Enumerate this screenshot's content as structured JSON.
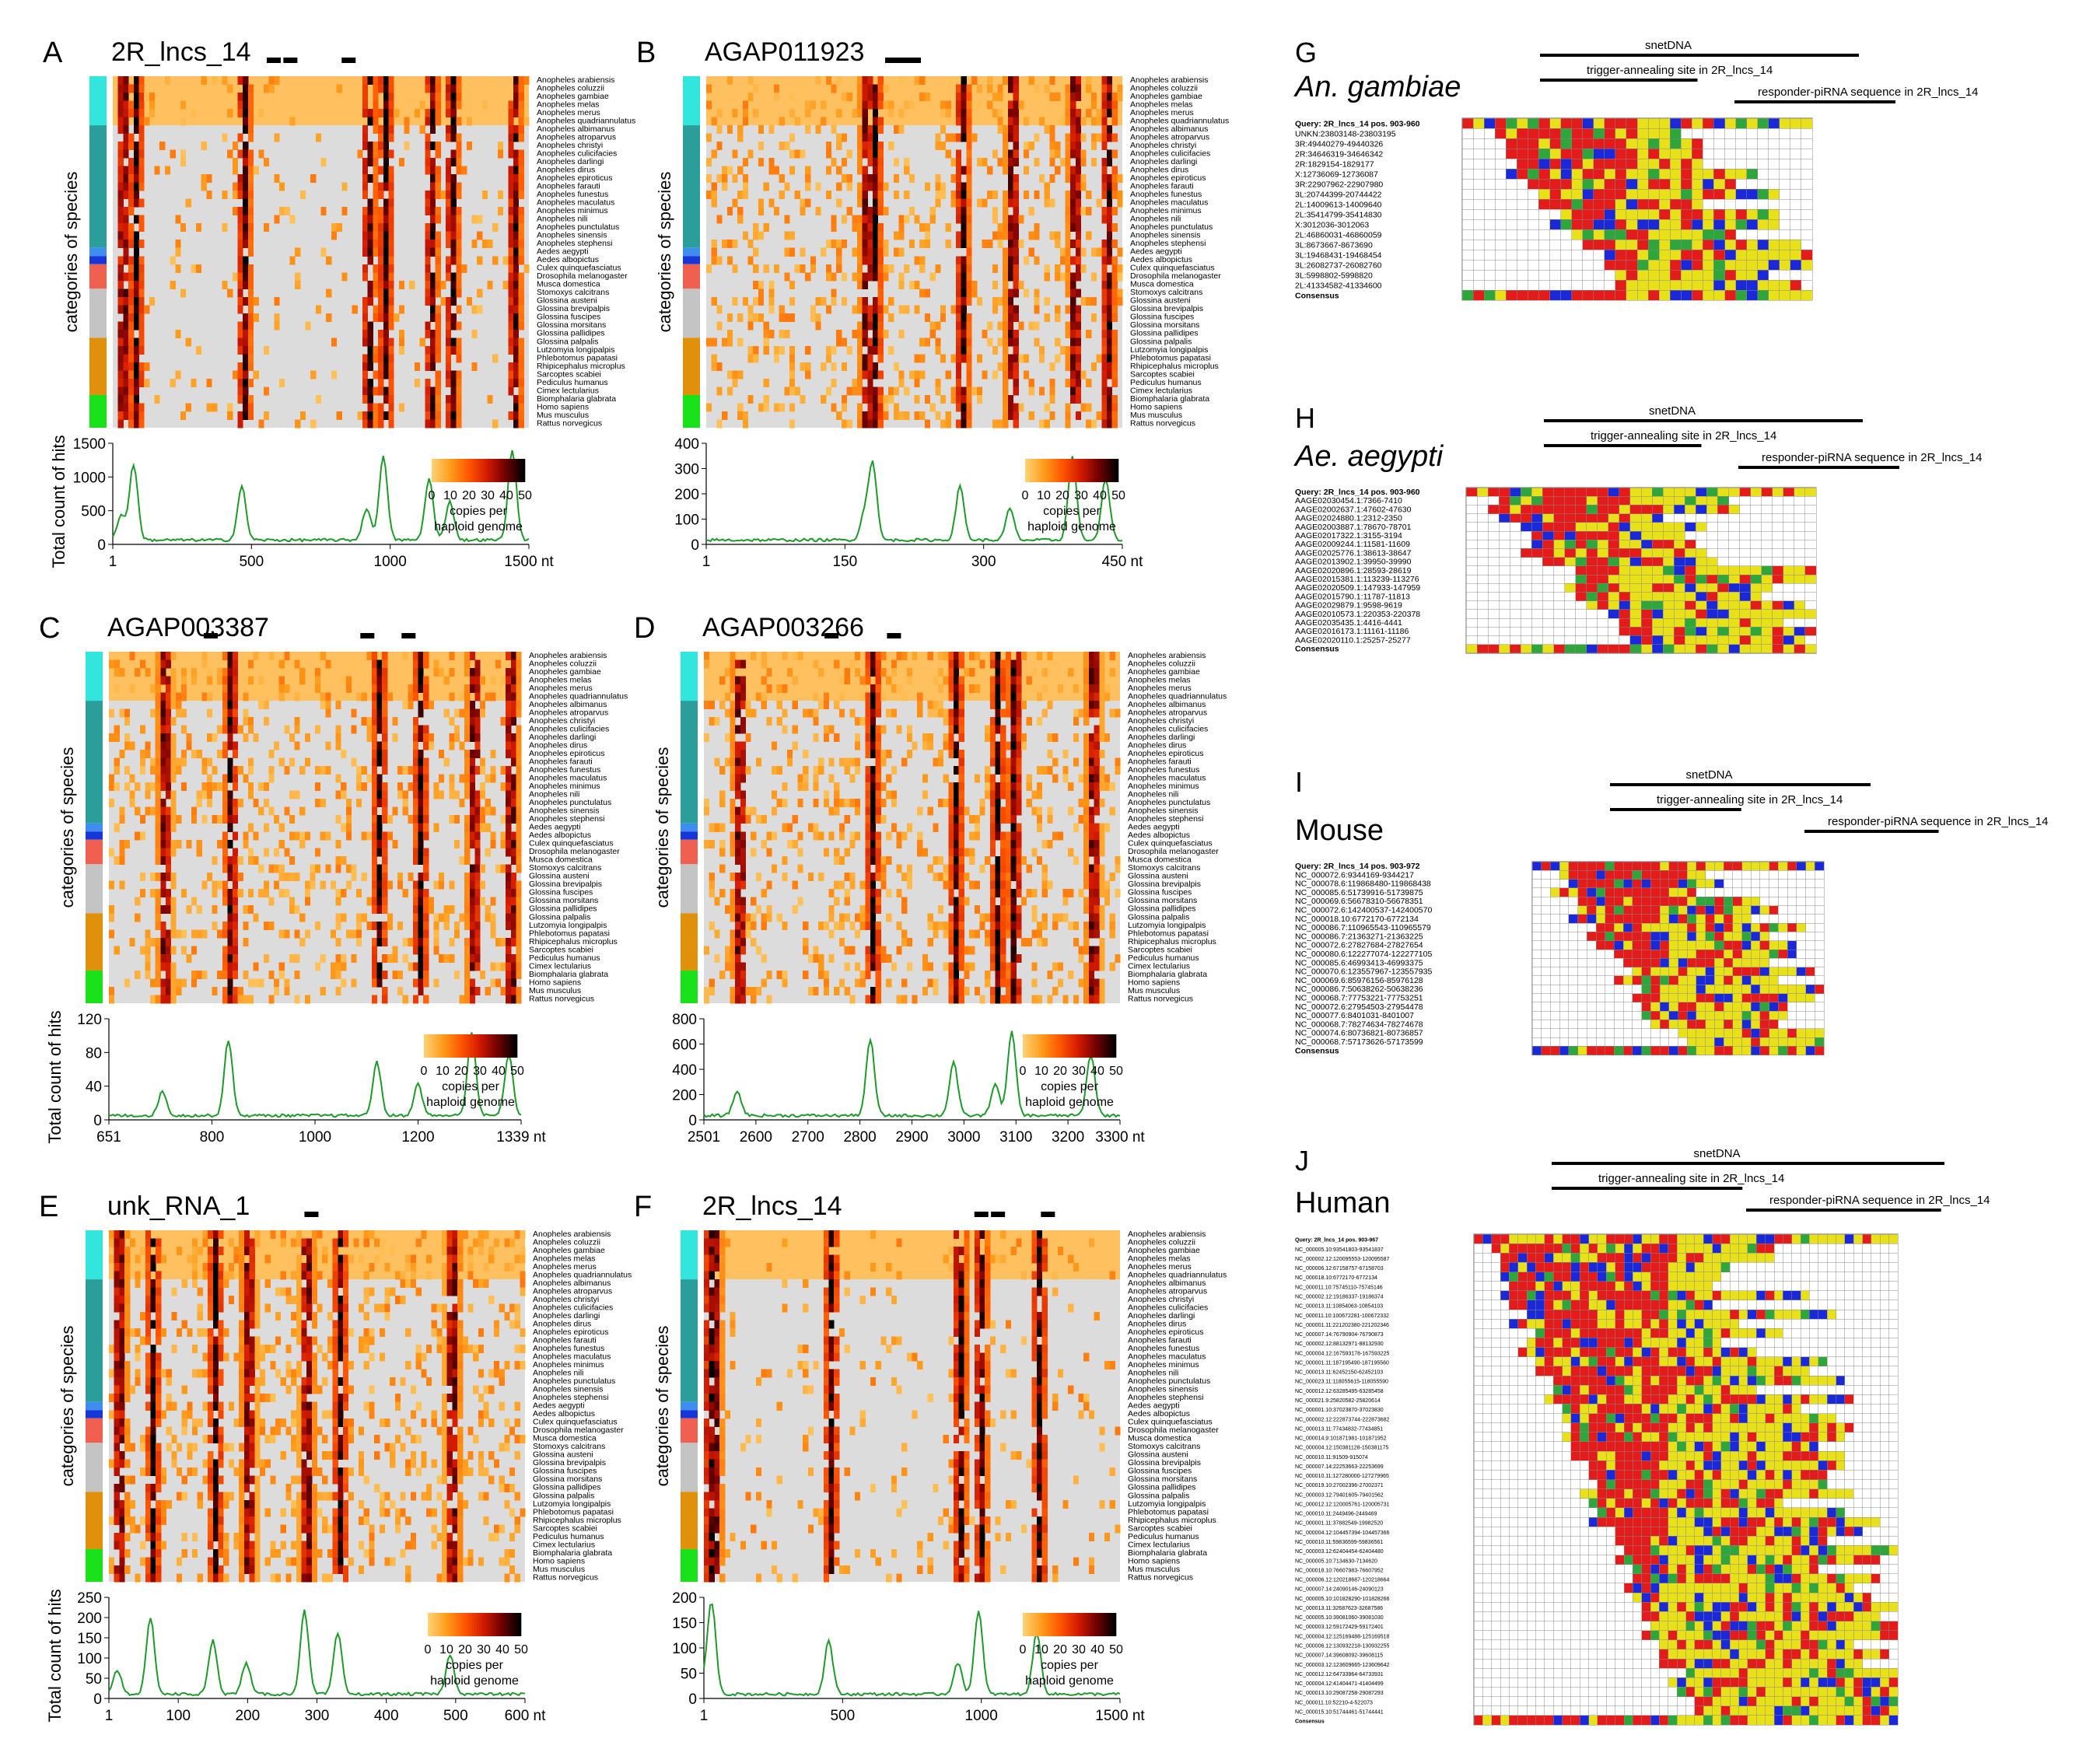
{
  "species": [
    "Anopheles arabiensis",
    "Anopheles coluzzii",
    "Anopheles gambiae",
    "Anopheles melas",
    "Anopheles merus",
    "Anopheles quadriannulatus",
    "Anopheles albimanus",
    "Anopheles atroparvus",
    "Anopheles christyi",
    "Anopheles culicifacies",
    "Anopheles darlingi",
    "Anopheles dirus",
    "Anopheles epiroticus",
    "Anopheles farauti",
    "Anopheles funestus",
    "Anopheles maculatus",
    "Anopheles minimus",
    "Anopheles nili",
    "Anopheles punctulatus",
    "Anopheles sinensis",
    "Anopheles stephensi",
    "Aedes aegypti",
    "Aedes albopictus",
    "Culex quinquefasciatus",
    "Drosophila melanogaster",
    "Musca domestica",
    "Stomoxys calcitrans",
    "Glossina austeni",
    "Glossina brevipalpis",
    "Glossina fuscipes",
    "Glossina morsitans",
    "Glossina pallidipes",
    "Glossina palpalis",
    "Lutzomyia longipalpis",
    "Phlebotomus papatasi",
    "Rhipicephalus microplus",
    "Sarcoptes scabiei",
    "Pediculus humanus",
    "Cimex lectularius",
    "Biomphalaria glabrata",
    "Homo sapiens",
    "Mus musculus",
    "Rattus norvegicus"
  ],
  "category_label": "categories of species",
  "hits_label": "Total count of hits",
  "colorbar": {
    "ticks": [
      "0",
      "10",
      "20",
      "30",
      "40",
      "50"
    ],
    "caption1": "copies per",
    "caption2": "haploid genome",
    "colors": [
      "#ffd070",
      "#ff9a1a",
      "#ff5500",
      "#d21a00",
      "#6e0000",
      "#000000"
    ]
  },
  "category_colors": [
    "#33e6dd",
    "#2b9d9a",
    "#3f8df0",
    "#1636d8",
    "#f06050",
    "#c4c4c4",
    "#e0900a",
    "#19e21a"
  ],
  "panels": [
    {
      "letter": "A",
      "title": "2R_lncs_14",
      "x_ticks": [
        "1",
        "500",
        "1000",
        "1500 nt"
      ],
      "y_ticks": [
        "1500",
        "1000",
        "500",
        "0"
      ]
    },
    {
      "letter": "B",
      "title": "AGAP011923",
      "x_ticks": [
        "1",
        "150",
        "300",
        "450 nt"
      ],
      "y_ticks": [
        "400",
        "300",
        "200",
        "100",
        "0"
      ]
    },
    {
      "letter": "C",
      "title": "AGAP003387",
      "x_ticks": [
        "651",
        "800",
        "1000",
        "1200",
        "1339 nt"
      ],
      "y_ticks": [
        "120",
        "80",
        "40",
        "0"
      ]
    },
    {
      "letter": "D",
      "title": "AGAP003266",
      "x_ticks": [
        "2501",
        "2600",
        "2700",
        "2800",
        "2900",
        "3000",
        "3100",
        "3200",
        "3300 nt"
      ],
      "y_ticks": [
        "800",
        "600",
        "400",
        "200",
        "0"
      ]
    },
    {
      "letter": "E",
      "title": "unk_RNA_1",
      "x_ticks": [
        "1",
        "100",
        "200",
        "300",
        "400",
        "500",
        "600 nt"
      ],
      "y_ticks": [
        "250",
        "200",
        "150",
        "100",
        "50",
        "0"
      ]
    },
    {
      "letter": "F",
      "title": "2R_lncs_14",
      "x_ticks": [
        "1",
        "500",
        "1000",
        "1500 nt"
      ],
      "y_ticks": [
        "200",
        "150",
        "100",
        "50",
        "0"
      ]
    }
  ],
  "alignments": [
    {
      "letter": "G",
      "organism": "An. gambiae",
      "snet": "snetDNA",
      "trigger": "trigger-annealing site in 2R_lncs_14",
      "responder": "responder-piRNA sequence in 2R_lncs_14",
      "query": "Query: 2R_lncs_14 pos. 903-960",
      "consensus": "Consensus",
      "rows": [
        "UNKN:23803148-23803195",
        "3R:49440279-49440326",
        "2R:34646319-34646342",
        "2R:1829154-1829177",
        "X:12736069-12736087",
        "3R:22907962-22907980",
        "3L:20744399-20744422",
        "2L:14009613-14009640",
        "2L:35414799-35414830",
        "X:3012036-3012063",
        "2L:46860031-46860059",
        "3L:8673667-8673690",
        "3L:19468431-19468454",
        "3L:26082737-26082760",
        "3L:5998802-5998820",
        "2L:41334582-41334600"
      ]
    },
    {
      "letter": "H",
      "organism": "Ae. aegypti",
      "snet": "snetDNA",
      "trigger": "trigger-annealing site in 2R_lncs_14",
      "responder": "responder-piRNA sequence in 2R_lncs_14",
      "query": "Query: 2R_lncs_14 pos. 903-960",
      "consensus": "Consensus",
      "rows": [
        "AAGE02030454.1:7366-7410",
        "AAGE02002637.1:47602-47630",
        "AAGE02024880.1:2312-2350",
        "AAGE02003887.1:78670-78701",
        "AAGE02017322.1:3155-3194",
        "AAGE02009244.1:11581-11609",
        "AAGE02025776.1:38613-38647",
        "AAGE02013902.1:39950-39990",
        "AAGE02020896.1:28593-28619",
        "AAGE02015381.1:113239-113276",
        "AAGE02020509.1:147933-147959",
        "AAGE02015790.1:11787-11813",
        "AAGE02029879.1:9598-9619",
        "AAGE02010573.1:220353-220378",
        "AAGE02035435.1:4416-4441",
        "AAGE02016173.1:11161-11186",
        "AAGE02020110.1:25257-25277"
      ]
    },
    {
      "letter": "I",
      "organism": "Mouse",
      "snet": "snetDNA",
      "trigger": "trigger-annealing site in 2R_lncs_14",
      "responder": "responder-piRNA sequence in 2R_lncs_14",
      "query": "Query: 2R_lncs_14 pos. 903-972",
      "consensus": "Consensus",
      "rows": [
        "NC_000072.6:9344169-9344217",
        "NC_000078.6:119868480-119868438",
        "NC_000085.6:51739916-51739875",
        "NC_000069.6:56678310-56678351",
        "NC_000072.6:142400537-142400570",
        "NC_000018.10:6772170-6772134",
        "NC_000086.7:110965543-110965579",
        "NC_000086.7:21363271-21363225",
        "NC_000072.6:27827684-27827654",
        "NC_000080.6:122277074-122277105",
        "NC_000085.6:46993413-46993375",
        "NC_000070.6:123557967-123557935",
        "NC_000069.6:85976156-85976128",
        "NC_000086.7:50638262-50638236",
        "NC_000068.7:77753221-77753251",
        "NC_000072.6:27954503-27954478",
        "NC_000077.6:8401031-8401007",
        "NC_000068.7:78274634-78274678",
        "NC_000074.6:80736821-80736857",
        "NC_000068.7:57173626-57173599"
      ]
    },
    {
      "letter": "J",
      "organism": "Human",
      "snet": "snetDNA",
      "trigger": "trigger-annealing site in 2R_lncs_14",
      "responder": "responder-piRNA sequence in 2R_lncs_14",
      "query": "Query: 2R_lncs_14 pos. 903-967",
      "consensus": "Consensus",
      "rows": [
        "NC_000005.10:93541803-93541837",
        "NC_000002.12:120095553-120095587",
        "NC_000006.12:67158757-67158703",
        "NC_000018.10:6772170-6772134",
        "NC_000011.10:75745110-75745146",
        "NC_000002.12:19186337-19186374",
        "NC_000013.11:10854063-10854103",
        "NC_000011.10:100672281-100672332",
        "NC_000001.11:221202380-221202346",
        "NC_000007.14:76790904-76790873",
        "NC_000002.12:88132971-88132930",
        "NC_000004.12:167593178-167593225",
        "NC_000001.11:187195490-187195560",
        "NC_000013.11:62452150-62452103",
        "NC_000023.11:118055615-118055590",
        "NC_000012.12:63285495-63285458",
        "NC_000021.9:25820582-25820614",
        "NC_000001.10:37023870-37023830",
        "NC_000002.12:222873744-222873682",
        "NC_000013.11:77434832-77434851",
        "NC_000014.9:101871981-101871952",
        "NC_000004.12:150381128-150381175",
        "NC_000010.11:91509-915074",
        "NC_000007.14:22253663-22253699",
        "NC_000010.11:127280000-127279965",
        "NC_000019.10:27002396-27002371",
        "NC_000003.12:79401605-79401562",
        "NC_000012.12:120005761-120005731",
        "NC_000010.11:2449496-2449469",
        "NC_000001.11:37882549-19982520",
        "NC_000004.12:104457394-104457366",
        "NC_000010.11:59836599-59836561",
        "NC_000003.12:62404454-62404480",
        "NC_000005.10:7134630-7134620",
        "NC_000018.10:76607983-76607952",
        "NC_000006.12:120218687-120218664",
        "NC_000007.14:24090146-24090123",
        "NC_000005.10:101828290-101828266",
        "NC_000013.11:32687623-32687586",
        "NC_000005.10:39081060-39081030",
        "NC_000003.12:59172429-59172401",
        "NC_000004.12:125169488-125169518",
        "NC_000006.12:130932218-130932255",
        "NC_000007.14:39608092-39608115",
        "NC_000003.12:123609665-123609642",
        "NC_000012.12:64733964-64733931",
        "NC_000004.12:41404471-41404499",
        "NC_000013.10:29087258-29087293",
        "NC_000011.10:52210-4-522073",
        "NC_000015.10:51744461-51744441"
      ]
    }
  ]
}
